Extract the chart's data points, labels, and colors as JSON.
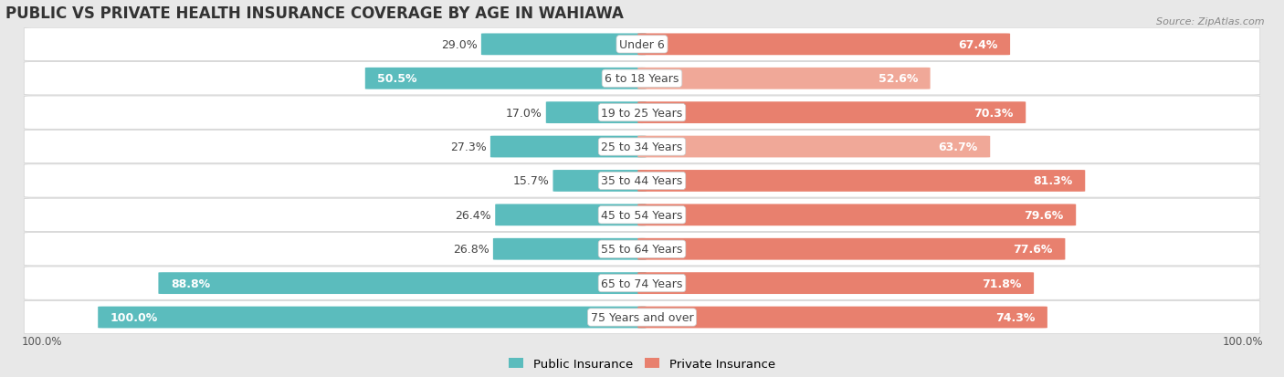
{
  "title": "PUBLIC VS PRIVATE HEALTH INSURANCE COVERAGE BY AGE IN WAHIAWA",
  "source": "Source: ZipAtlas.com",
  "categories": [
    "Under 6",
    "6 to 18 Years",
    "19 to 25 Years",
    "25 to 34 Years",
    "35 to 44 Years",
    "45 to 54 Years",
    "55 to 64 Years",
    "65 to 74 Years",
    "75 Years and over"
  ],
  "public_values": [
    29.0,
    50.5,
    17.0,
    27.3,
    15.7,
    26.4,
    26.8,
    88.8,
    100.0
  ],
  "private_values": [
    67.4,
    52.6,
    70.3,
    63.7,
    81.3,
    79.6,
    77.6,
    71.8,
    74.3
  ],
  "public_color": "#5bbcbd",
  "private_color": "#e8806e",
  "private_colors": [
    "#e8806e",
    "#f0a898",
    "#e8806e",
    "#f0a898",
    "#e8806e",
    "#e8806e",
    "#e8806e",
    "#e8806e",
    "#e8806e"
  ],
  "bg_color": "#e8e8e8",
  "row_bg_color": "#f5f5f5",
  "title_fontsize": 12,
  "label_fontsize": 9,
  "value_fontsize": 9,
  "bar_height": 0.62,
  "legend_public": "Public Insurance",
  "legend_private": "Private Insurance"
}
